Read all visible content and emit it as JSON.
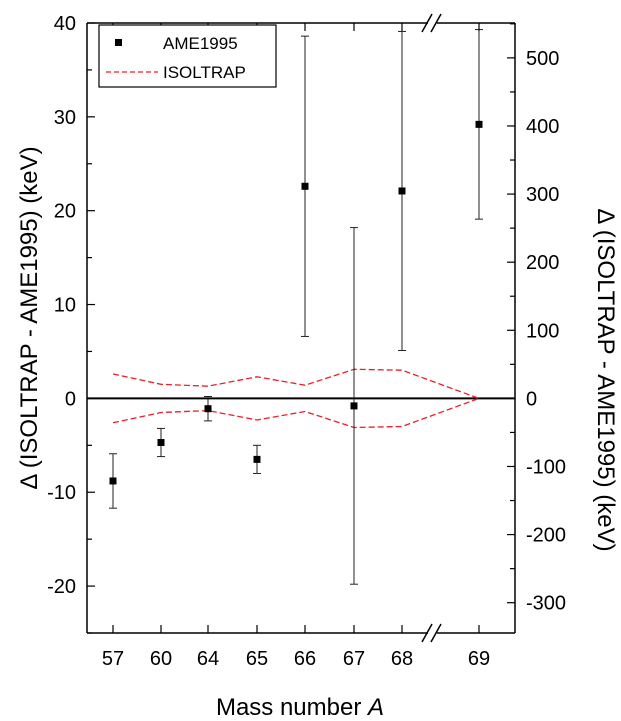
{
  "chart_data": {
    "type": "scatter",
    "categories": [
      "57",
      "60",
      "64",
      "65",
      "66",
      "67",
      "68",
      "69"
    ],
    "series": [
      {
        "name": "AME1995",
        "axis": "left",
        "values": [
          -8.8,
          -4.7,
          -1.1,
          -6.5,
          22.6,
          -0.8,
          22.1,
          29.2
        ],
        "errors": [
          2.9,
          1.5,
          1.3,
          1.5,
          16.0,
          19.0,
          17.0,
          10.1
        ]
      },
      {
        "name": "ISOLTRAP",
        "axis": "left",
        "style": "dashed",
        "upper": [
          2.6,
          1.5,
          1.3,
          2.3,
          1.4,
          3.1,
          3.0,
          0.0
        ],
        "lower": [
          -2.6,
          -1.5,
          -1.3,
          -2.3,
          -1.4,
          -3.1,
          -3.0,
          0.0
        ]
      }
    ],
    "xlabel": "Mass number",
    "xlabel_italic": "A",
    "ylabel_left": "Δ (ISOLTRAP - AME1995) (keV)",
    "ylabel_right": "Δ (ISOLTRAP - AME1995) (keV)",
    "ylim_left": [
      -25,
      40
    ],
    "yticks_left": [
      -20,
      -10,
      0,
      10,
      20,
      30,
      40
    ],
    "ylim_right": [
      -344.5,
      551.2
    ],
    "yticks_right": [
      -300,
      -200,
      -100,
      0,
      100,
      200,
      300,
      400,
      500
    ],
    "right_axis_series": "69",
    "axis_break": "between 68 and 69",
    "legend_position": "top-left",
    "grid": false,
    "colors": {
      "AME1995": "#000000",
      "ISOLTRAP": "#e8202a",
      "axes": "#000000"
    }
  }
}
